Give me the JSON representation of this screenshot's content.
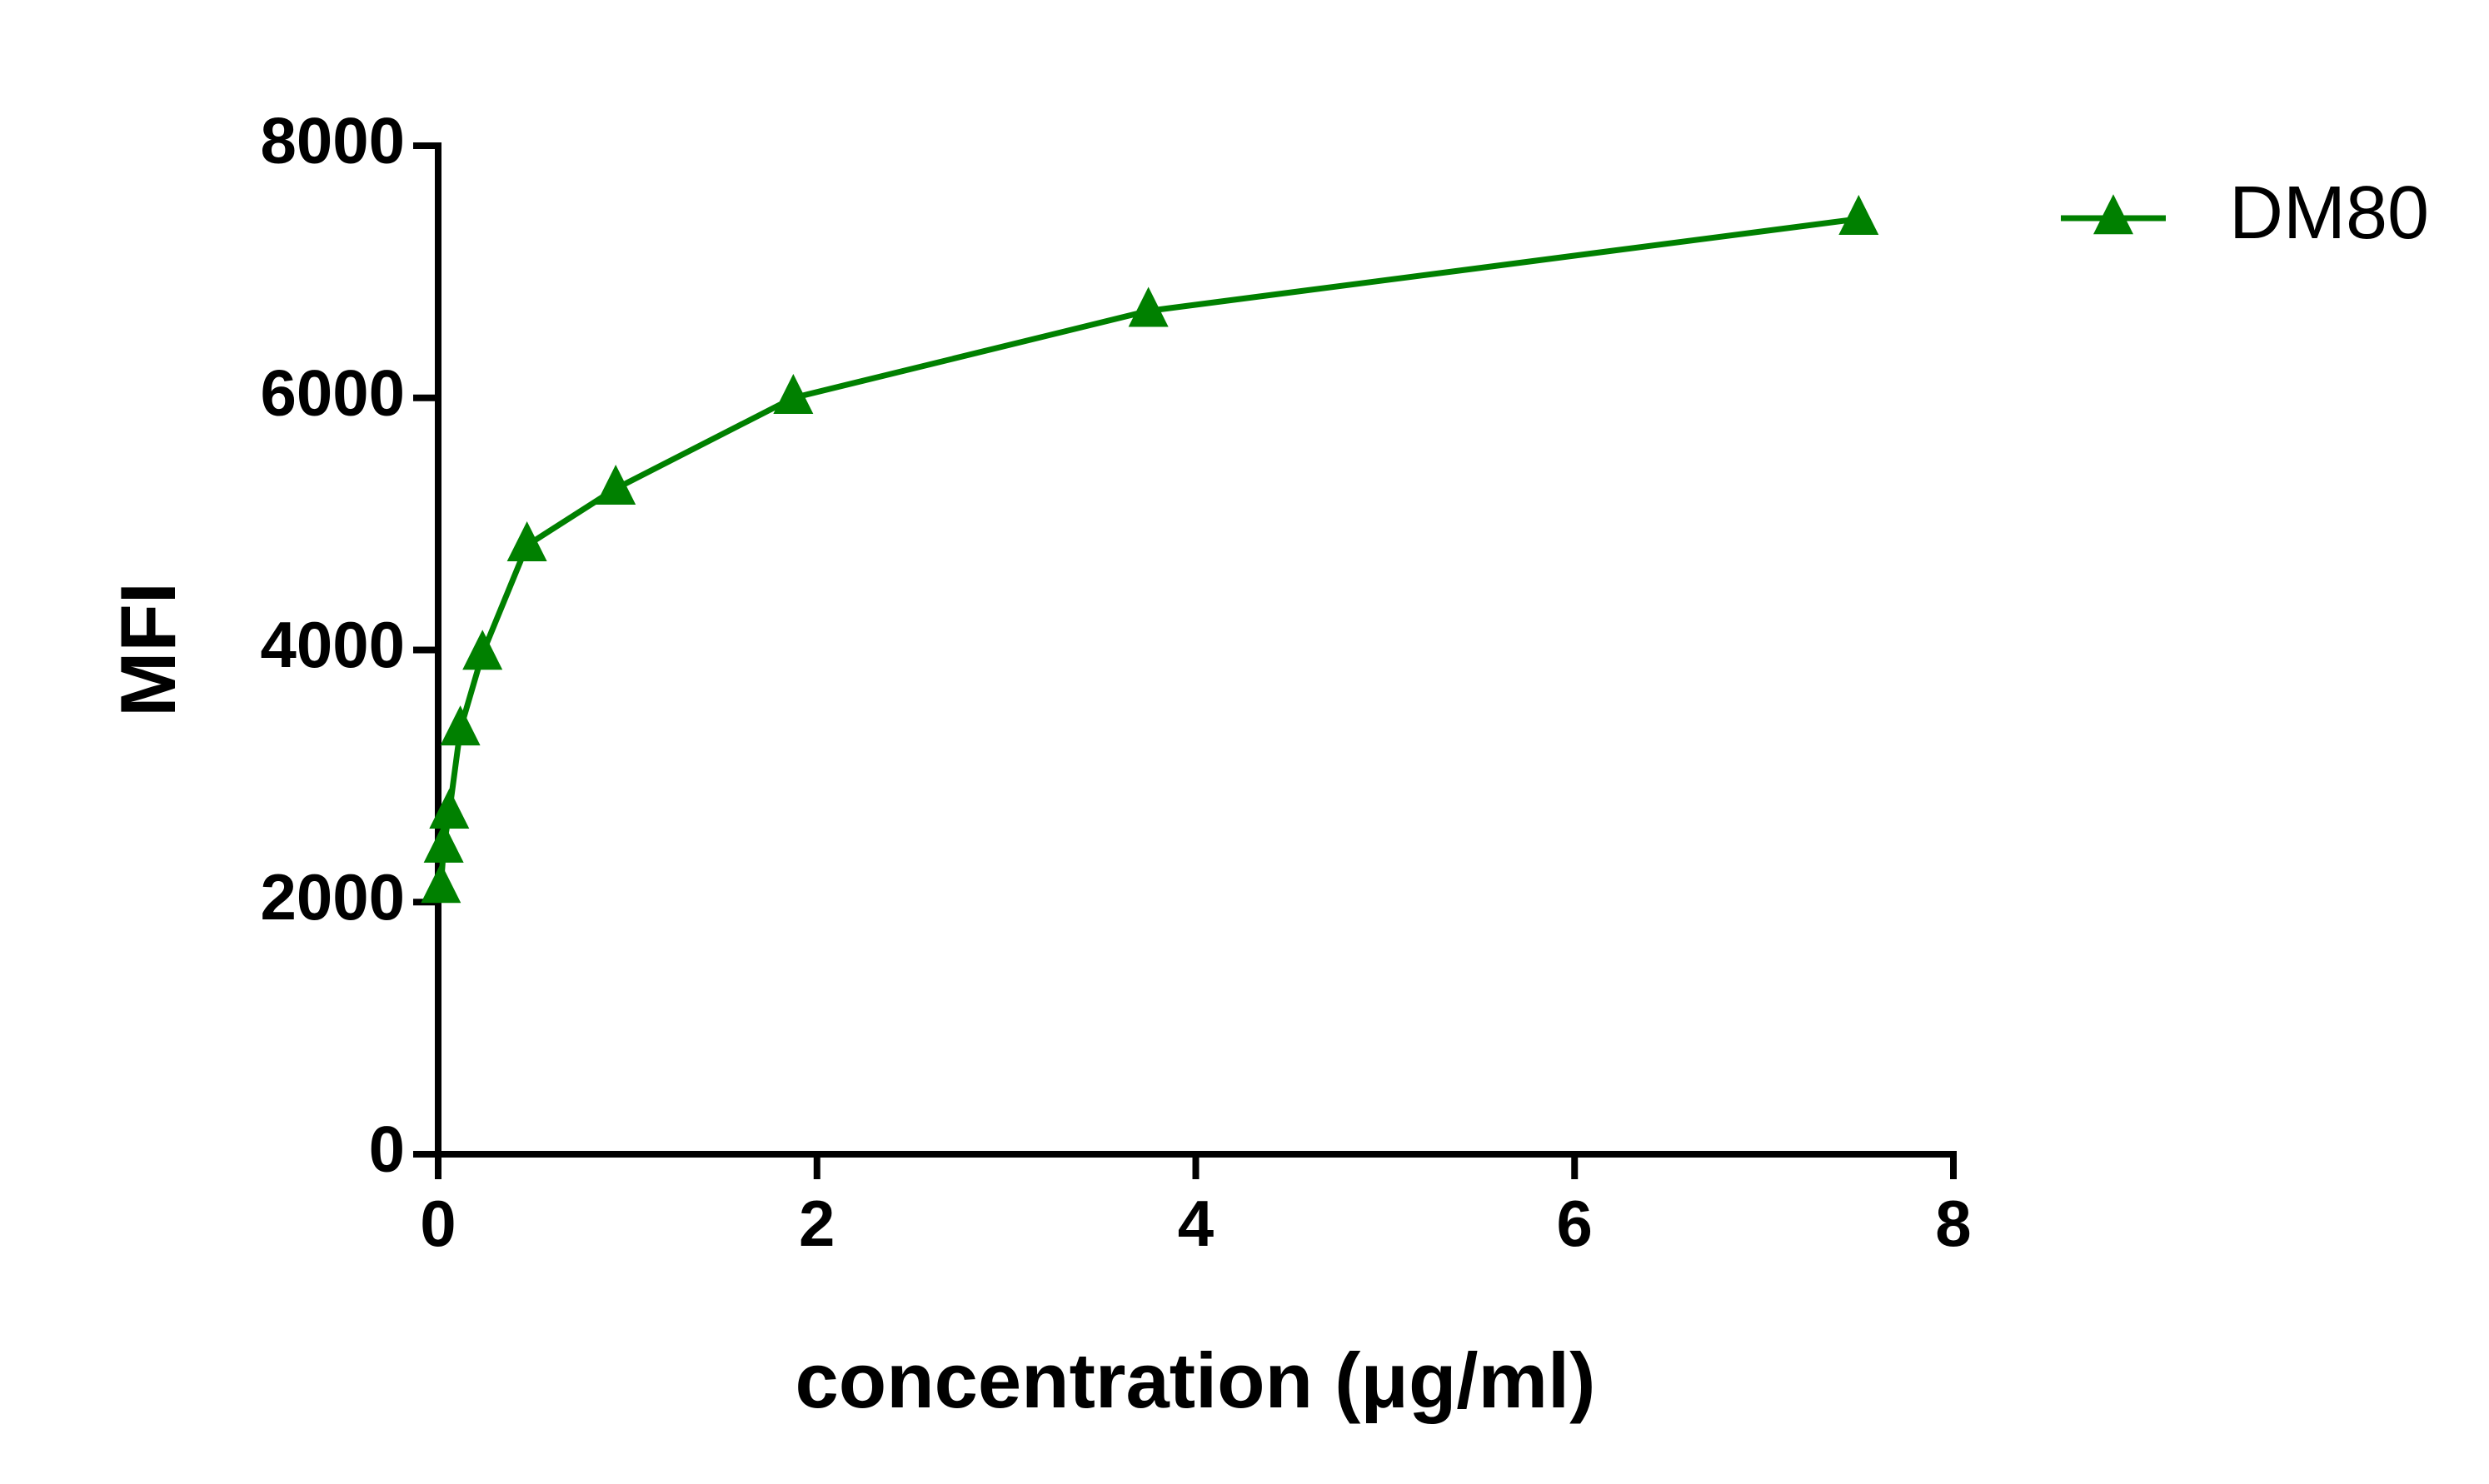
{
  "chart_data": {
    "type": "line",
    "x_label": "concentration (μg/ml)",
    "y_label": "MFI",
    "xlim": [
      0,
      8
    ],
    "xticks": [
      0,
      2,
      4,
      6,
      8
    ],
    "ylim": [
      0,
      8000
    ],
    "yticks": [
      0,
      2000,
      4000,
      6000,
      8000
    ],
    "legend": "top-right",
    "marker": "triangle",
    "series": [
      {
        "name": "DM80",
        "color": "#008000",
        "x": [
          7.5,
          3.75,
          1.875,
          0.9375,
          0.469,
          0.234,
          0.117,
          0.0586,
          0.0293,
          0.0146
        ],
        "values": [
          7420,
          6690,
          6000,
          5280,
          4830,
          3970,
          3370,
          2710,
          2440,
          2120
        ]
      }
    ]
  }
}
